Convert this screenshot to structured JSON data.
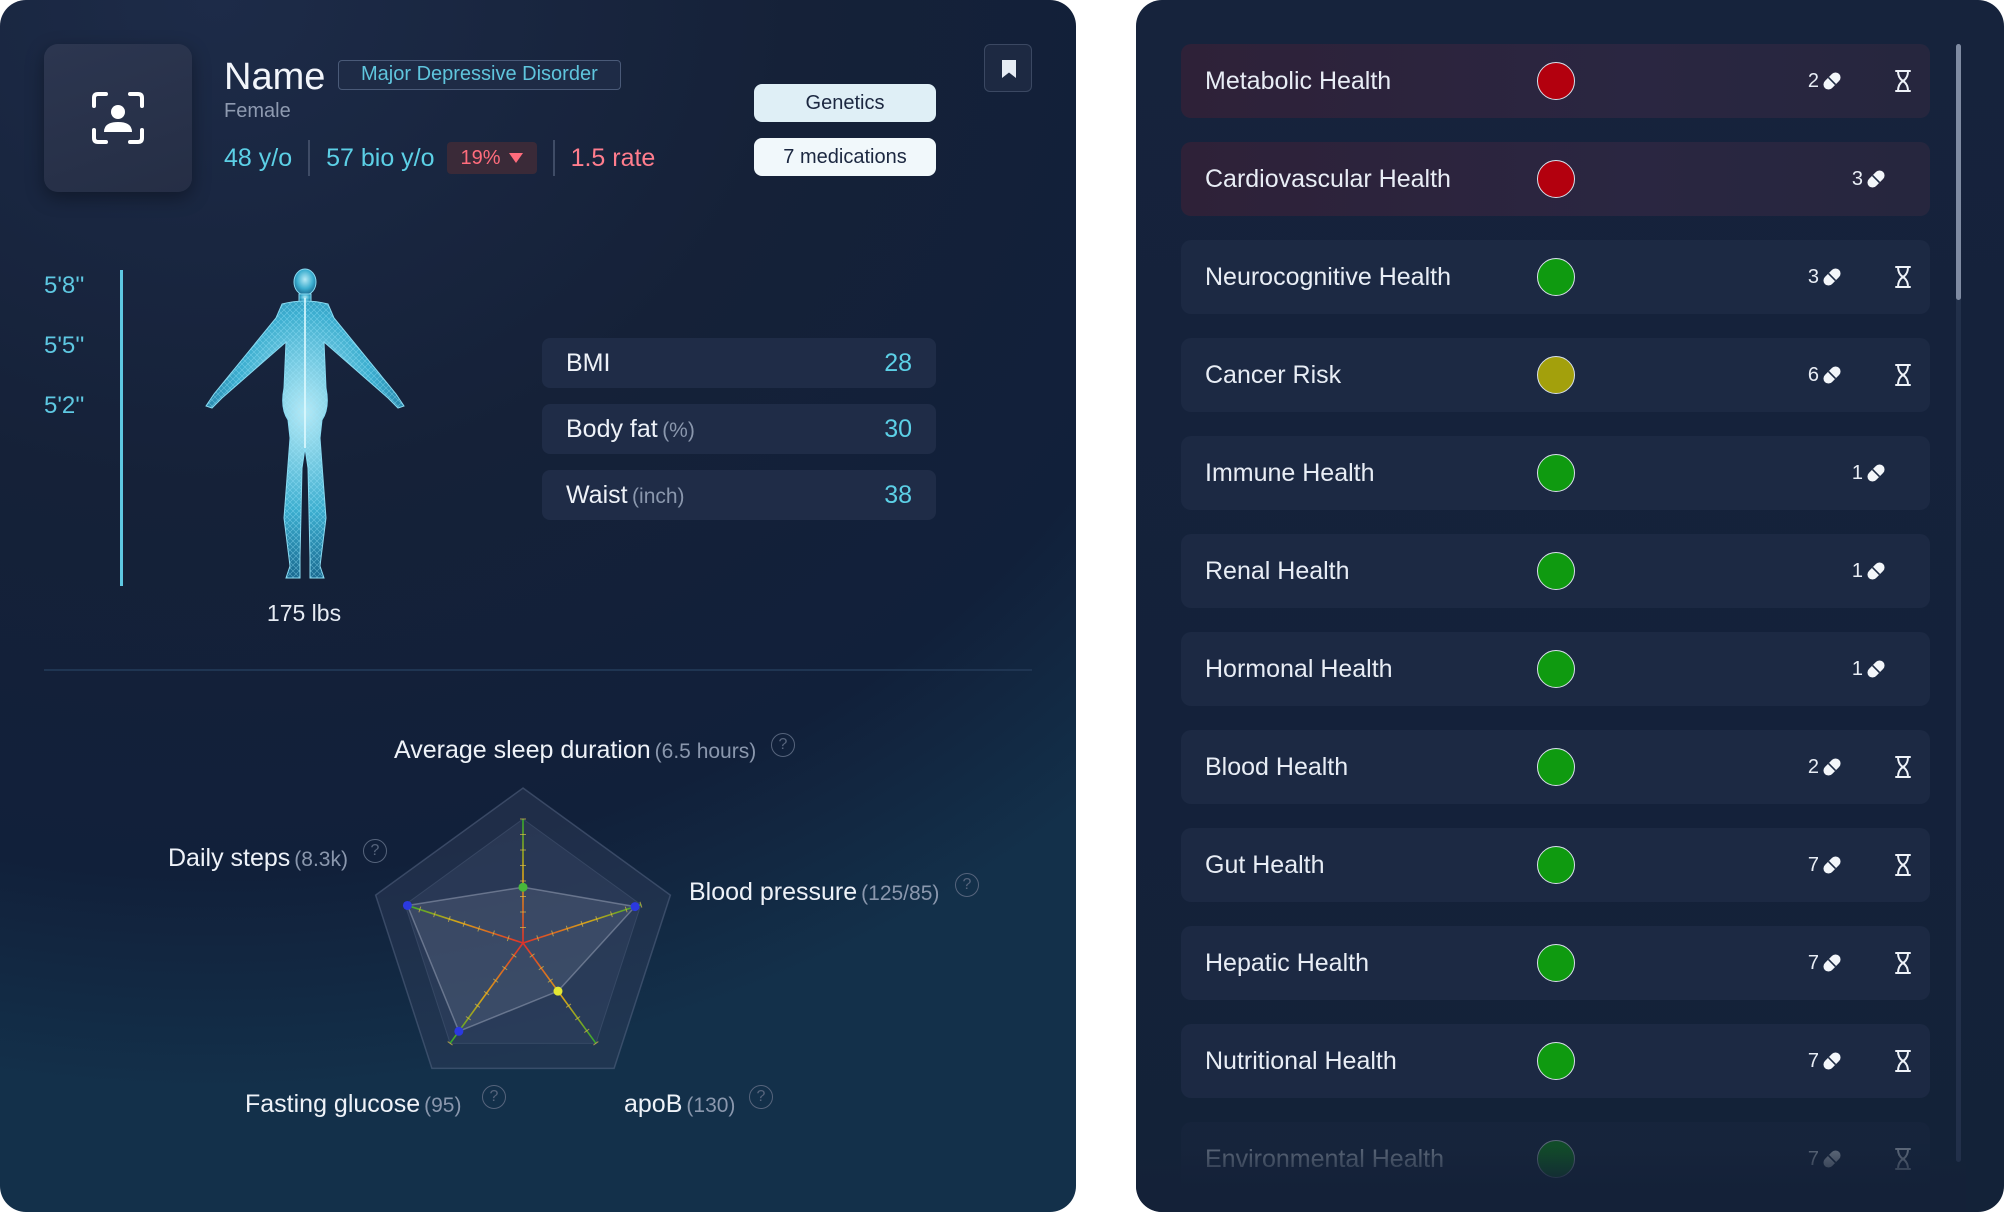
{
  "profile": {
    "name": "Name",
    "diagnosis": "Major Depressive Disorder",
    "gender": "Female",
    "age": "48 y/o",
    "bio_age": "57 bio y/o",
    "bio_age_delta": "19%",
    "rate": "1.5 rate",
    "genetics_label": "Genetics",
    "medications_label": "7 medications"
  },
  "body": {
    "height_ticks": [
      "5'8''",
      "5'5''",
      "5'2''"
    ],
    "weight": "175 lbs",
    "metrics": [
      {
        "label": "BMI",
        "unit": "",
        "value": "28"
      },
      {
        "label": "Body fat",
        "unit": "(%)",
        "value": "30"
      },
      {
        "label": "Waist",
        "unit": "(inch)",
        "value": "38"
      }
    ]
  },
  "radar": {
    "axes": [
      {
        "label": "Average sleep duration",
        "value": "(6.5 hours)",
        "level": 0.45
      },
      {
        "label": "Blood pressure",
        "value": "(125/85)",
        "level": 0.95
      },
      {
        "label": "apoB",
        "value": "(130)",
        "level": 0.48
      },
      {
        "label": "Fasting glucose",
        "value": "(95)",
        "level": 0.88
      },
      {
        "label": "Daily steps",
        "value": "(8.3k)",
        "level": 0.98
      }
    ]
  },
  "health": {
    "colors": {
      "red": "#b3000e",
      "green": "#0f9a10",
      "yellow": "#a3a00c"
    },
    "items": [
      {
        "name": "Metabolic Health",
        "status": "red",
        "count": "2",
        "icon": "pill-icon",
        "pending": true
      },
      {
        "name": "Cardiovascular Health",
        "status": "red",
        "count": "3",
        "icon": "pill-icon",
        "pending": false
      },
      {
        "name": "Neurocognitive Health",
        "status": "green",
        "count": "3",
        "icon": "pill-icon",
        "pending": true
      },
      {
        "name": "Cancer Risk",
        "status": "yellow",
        "count": "6",
        "icon": "pill-icon",
        "pending": true
      },
      {
        "name": "Immune Health",
        "status": "green",
        "count": "1",
        "icon": "pill-icon",
        "pending": false
      },
      {
        "name": "Renal Health",
        "status": "green",
        "count": "1",
        "icon": "pill-icon",
        "pending": false
      },
      {
        "name": "Hormonal Health",
        "status": "green",
        "count": "1",
        "icon": "pill-icon",
        "pending": false
      },
      {
        "name": "Blood Health",
        "status": "green",
        "count": "2",
        "icon": "pill-icon",
        "pending": true
      },
      {
        "name": "Gut Health",
        "status": "green",
        "count": "7",
        "icon": "pill-icon",
        "pending": true
      },
      {
        "name": "Hepatic Health",
        "status": "green",
        "count": "7",
        "icon": "pill-icon",
        "pending": true
      },
      {
        "name": "Nutritional Health",
        "status": "green",
        "count": "7",
        "icon": "pill-icon",
        "pending": true
      },
      {
        "name": "Environmental Health",
        "status": "green",
        "count": "7",
        "icon": "pill-icon",
        "pending": true
      }
    ]
  }
}
